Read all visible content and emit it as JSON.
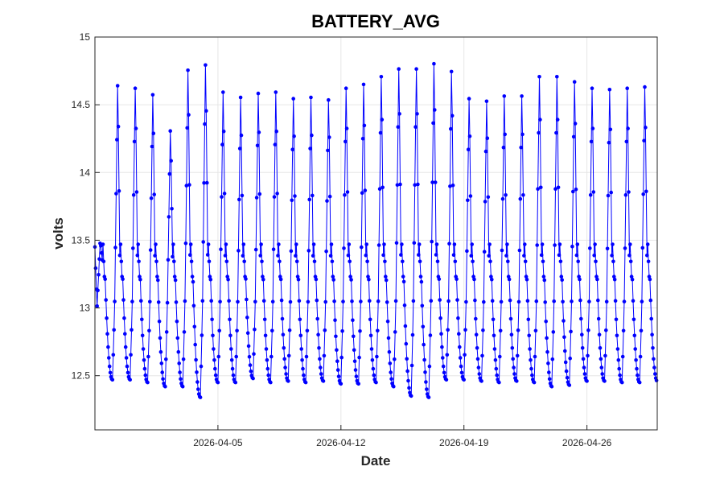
{
  "chart_data": {
    "type": "line",
    "title": "BATTERY_AVG",
    "xlabel": "Date",
    "ylabel": "volts",
    "x_range": [
      "2026-03-29",
      "2026-04-30"
    ],
    "ylim": [
      12.1,
      15.0
    ],
    "grid": true,
    "x_ticks": [
      "2026-04-05",
      "2026-04-12",
      "2026-04-19",
      "2026-04-26"
    ],
    "y_ticks": [
      12.5,
      13,
      13.5,
      14,
      14.5,
      15
    ],
    "y_tick_labels": [
      "12.5",
      "13",
      "13.5",
      "14",
      "14.5",
      "15"
    ],
    "series": [
      {
        "color": "#0000ff",
        "marker": "dot",
        "start_date": "2026-03-29",
        "samples_per_day": 24,
        "daily_cycles": [
          {
            "day": "2026-03-29",
            "peak": 13.5,
            "min": 12.47
          },
          {
            "day": "2026-03-30",
            "peak": 14.72,
            "min": 12.47
          },
          {
            "day": "2026-03-31",
            "peak": 14.7,
            "min": 12.45
          },
          {
            "day": "2026-04-01",
            "peak": 14.65,
            "min": 12.42
          },
          {
            "day": "2026-04-02",
            "peak": 14.37,
            "min": 12.42
          },
          {
            "day": "2026-04-03",
            "peak": 14.84,
            "min": 12.34
          },
          {
            "day": "2026-04-04",
            "peak": 14.88,
            "min": 12.45
          },
          {
            "day": "2026-04-05",
            "peak": 14.67,
            "min": 12.45
          },
          {
            "day": "2026-04-06",
            "peak": 14.63,
            "min": 12.48
          },
          {
            "day": "2026-04-07",
            "peak": 14.66,
            "min": 12.45
          },
          {
            "day": "2026-04-08",
            "peak": 14.67,
            "min": 12.46
          },
          {
            "day": "2026-04-09",
            "peak": 14.62,
            "min": 12.45
          },
          {
            "day": "2026-04-10",
            "peak": 14.63,
            "min": 12.46
          },
          {
            "day": "2026-04-11",
            "peak": 14.61,
            "min": 12.44
          },
          {
            "day": "2026-04-12",
            "peak": 14.7,
            "min": 12.44
          },
          {
            "day": "2026-04-13",
            "peak": 14.73,
            "min": 12.45
          },
          {
            "day": "2026-04-14",
            "peak": 14.79,
            "min": 12.42
          },
          {
            "day": "2026-04-15",
            "peak": 14.85,
            "min": 12.35
          },
          {
            "day": "2026-04-16",
            "peak": 14.85,
            "min": 12.34
          },
          {
            "day": "2026-04-17",
            "peak": 14.89,
            "min": 12.47
          },
          {
            "day": "2026-04-18",
            "peak": 14.83,
            "min": 12.47
          },
          {
            "day": "2026-04-19",
            "peak": 14.62,
            "min": 12.46
          },
          {
            "day": "2026-04-20",
            "peak": 14.6,
            "min": 12.45
          },
          {
            "day": "2026-04-21",
            "peak": 14.64,
            "min": 12.46
          },
          {
            "day": "2026-04-22",
            "peak": 14.64,
            "min": 12.45
          },
          {
            "day": "2026-04-23",
            "peak": 14.79,
            "min": 12.42
          },
          {
            "day": "2026-04-24",
            "peak": 14.79,
            "min": 12.43
          },
          {
            "day": "2026-04-25",
            "peak": 14.75,
            "min": 12.46
          },
          {
            "day": "2026-04-26",
            "peak": 14.7,
            "min": 12.46
          },
          {
            "day": "2026-04-27",
            "peak": 14.69,
            "min": 12.45
          },
          {
            "day": "2026-04-28",
            "peak": 14.7,
            "min": 12.45
          },
          {
            "day": "2026-04-29",
            "peak": 14.71,
            "min": 12.46
          }
        ]
      }
    ]
  }
}
